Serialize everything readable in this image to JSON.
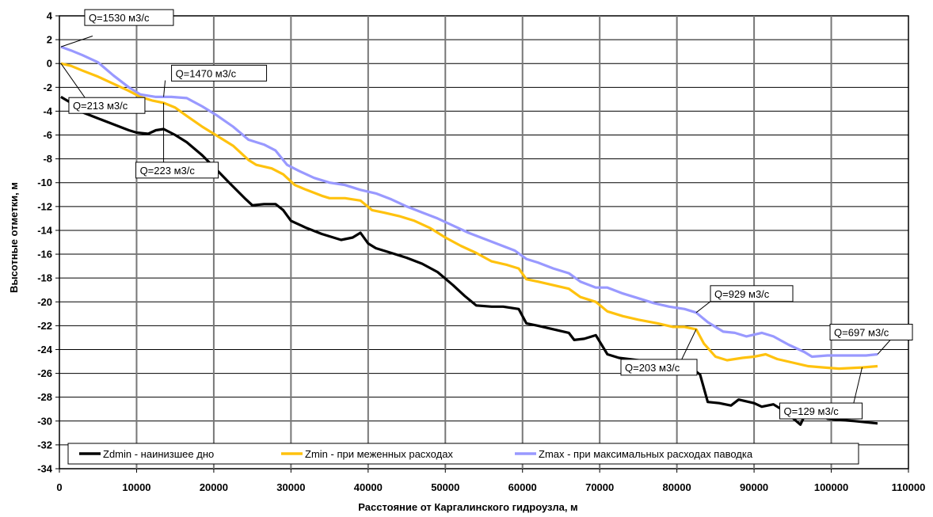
{
  "chart_data": {
    "type": "line",
    "xlabel": "Расстояние от Каргалинского гидроузла, м",
    "ylabel": "Высотные отметки, м",
    "xlim": [
      0,
      110000
    ],
    "ylim": [
      -34,
      4
    ],
    "x_ticks": [
      "0",
      "10000",
      "20000",
      "30000",
      "40000",
      "50000",
      "60000",
      "70000",
      "80000",
      "90000",
      "100000",
      "110000"
    ],
    "y_ticks": [
      "4",
      "2",
      "0",
      "-2",
      "-4",
      "-6",
      "-8",
      "-10",
      "-12",
      "-14",
      "-16",
      "-18",
      "-20",
      "-22",
      "-24",
      "-26",
      "-28",
      "-30",
      "-32",
      "-34"
    ],
    "grid": "vertical major gridlines and horizontal gridlines",
    "legend_position": "bottom-left inside",
    "series": [
      {
        "name": "Zdmin - наинизшее дно",
        "color": "#000000",
        "points": [
          [
            200,
            -2.8
          ],
          [
            1500,
            -3.3
          ],
          [
            3000,
            -4.1
          ],
          [
            5000,
            -4.6
          ],
          [
            7000,
            -5.1
          ],
          [
            9000,
            -5.6
          ],
          [
            10000,
            -5.8
          ],
          [
            11500,
            -5.9
          ],
          [
            12500,
            -5.6
          ],
          [
            13500,
            -5.5
          ],
          [
            15000,
            -6.0
          ],
          [
            16500,
            -6.6
          ],
          [
            18500,
            -7.7
          ],
          [
            20500,
            -9.0
          ],
          [
            22000,
            -10.0
          ],
          [
            24000,
            -11.3
          ],
          [
            25000,
            -11.9
          ],
          [
            26500,
            -11.8
          ],
          [
            28000,
            -11.8
          ],
          [
            29000,
            -12.3
          ],
          [
            30000,
            -13.2
          ],
          [
            32000,
            -13.8
          ],
          [
            34000,
            -14.3
          ],
          [
            36500,
            -14.8
          ],
          [
            38000,
            -14.6
          ],
          [
            39000,
            -14.2
          ],
          [
            40000,
            -15.1
          ],
          [
            41000,
            -15.5
          ],
          [
            43000,
            -15.9
          ],
          [
            45000,
            -16.3
          ],
          [
            47000,
            -16.8
          ],
          [
            49000,
            -17.5
          ],
          [
            51000,
            -18.6
          ],
          [
            52500,
            -19.5
          ],
          [
            54000,
            -20.3
          ],
          [
            56000,
            -20.4
          ],
          [
            57500,
            -20.4
          ],
          [
            59500,
            -20.6
          ],
          [
            60500,
            -21.8
          ],
          [
            62000,
            -22.0
          ],
          [
            64000,
            -22.3
          ],
          [
            66000,
            -22.6
          ],
          [
            66700,
            -23.2
          ],
          [
            68000,
            -23.1
          ],
          [
            69500,
            -22.8
          ],
          [
            71000,
            -24.4
          ],
          [
            72500,
            -24.7
          ],
          [
            75000,
            -24.9
          ],
          [
            78000,
            -25.2
          ],
          [
            80500,
            -25.4
          ],
          [
            82000,
            -25.6
          ],
          [
            83000,
            -26.1
          ],
          [
            84000,
            -28.4
          ],
          [
            85500,
            -28.5
          ],
          [
            87000,
            -28.7
          ],
          [
            88000,
            -28.2
          ],
          [
            90000,
            -28.5
          ],
          [
            91000,
            -28.8
          ],
          [
            92500,
            -28.6
          ],
          [
            94000,
            -29.2
          ],
          [
            96000,
            -30.3
          ],
          [
            96800,
            -29.2
          ],
          [
            97500,
            -28.8
          ],
          [
            98500,
            -29.2
          ],
          [
            99500,
            -29.8
          ],
          [
            101000,
            -29.9
          ],
          [
            103000,
            -30.0
          ],
          [
            104500,
            -30.1
          ],
          [
            106000,
            -30.2
          ]
        ]
      },
      {
        "name": "Zmin - при меженных расходах",
        "color": "#FFC20E",
        "points": [
          [
            200,
            0.0
          ],
          [
            1500,
            -0.2
          ],
          [
            3000,
            -0.6
          ],
          [
            5000,
            -1.1
          ],
          [
            7000,
            -1.7
          ],
          [
            9000,
            -2.3
          ],
          [
            10500,
            -2.8
          ],
          [
            12000,
            -3.1
          ],
          [
            13500,
            -3.3
          ],
          [
            15000,
            -3.7
          ],
          [
            16500,
            -4.4
          ],
          [
            18500,
            -5.3
          ],
          [
            20500,
            -6.1
          ],
          [
            22500,
            -6.9
          ],
          [
            24500,
            -8.1
          ],
          [
            25500,
            -8.5
          ],
          [
            27500,
            -8.8
          ],
          [
            29000,
            -9.3
          ],
          [
            30500,
            -10.2
          ],
          [
            32000,
            -10.6
          ],
          [
            34000,
            -11.1
          ],
          [
            35000,
            -11.3
          ],
          [
            37000,
            -11.3
          ],
          [
            39000,
            -11.5
          ],
          [
            40500,
            -12.3
          ],
          [
            42000,
            -12.5
          ],
          [
            44000,
            -12.8
          ],
          [
            46000,
            -13.2
          ],
          [
            48000,
            -13.8
          ],
          [
            50000,
            -14.6
          ],
          [
            52000,
            -15.3
          ],
          [
            54000,
            -15.9
          ],
          [
            56000,
            -16.6
          ],
          [
            58000,
            -16.9
          ],
          [
            59500,
            -17.2
          ],
          [
            60500,
            -18.1
          ],
          [
            62000,
            -18.3
          ],
          [
            64000,
            -18.6
          ],
          [
            66000,
            -18.9
          ],
          [
            67500,
            -19.6
          ],
          [
            69500,
            -20.0
          ],
          [
            71000,
            -20.8
          ],
          [
            73000,
            -21.2
          ],
          [
            75000,
            -21.5
          ],
          [
            77500,
            -21.8
          ],
          [
            79500,
            -22.1
          ],
          [
            81000,
            -22.1
          ],
          [
            82500,
            -22.3
          ],
          [
            83500,
            -23.5
          ],
          [
            85000,
            -24.6
          ],
          [
            86500,
            -24.9
          ],
          [
            88500,
            -24.7
          ],
          [
            90000,
            -24.6
          ],
          [
            91500,
            -24.4
          ],
          [
            93000,
            -24.8
          ],
          [
            95000,
            -25.1
          ],
          [
            97000,
            -25.4
          ],
          [
            99000,
            -25.5
          ],
          [
            101000,
            -25.6
          ],
          [
            104000,
            -25.5
          ],
          [
            106000,
            -25.4
          ]
        ]
      },
      {
        "name": "Zmax - при максимальных расходах паводка",
        "color": "#9999FF",
        "points": [
          [
            200,
            1.4
          ],
          [
            1500,
            1.1
          ],
          [
            3000,
            0.7
          ],
          [
            5000,
            0.1
          ],
          [
            7000,
            -1.0
          ],
          [
            9000,
            -2.0
          ],
          [
            10500,
            -2.6
          ],
          [
            12500,
            -2.8
          ],
          [
            14500,
            -2.8
          ],
          [
            16500,
            -2.9
          ],
          [
            18500,
            -3.6
          ],
          [
            20500,
            -4.4
          ],
          [
            22500,
            -5.3
          ],
          [
            24500,
            -6.4
          ],
          [
            26500,
            -6.8
          ],
          [
            28000,
            -7.3
          ],
          [
            29500,
            -8.5
          ],
          [
            31000,
            -9.0
          ],
          [
            33000,
            -9.6
          ],
          [
            35000,
            -10.0
          ],
          [
            37000,
            -10.2
          ],
          [
            39000,
            -10.6
          ],
          [
            41000,
            -10.9
          ],
          [
            43000,
            -11.4
          ],
          [
            45000,
            -12.0
          ],
          [
            47000,
            -12.5
          ],
          [
            49000,
            -13.0
          ],
          [
            51000,
            -13.6
          ],
          [
            53000,
            -14.2
          ],
          [
            55000,
            -14.7
          ],
          [
            57000,
            -15.2
          ],
          [
            59000,
            -15.7
          ],
          [
            60500,
            -16.4
          ],
          [
            62000,
            -16.7
          ],
          [
            64000,
            -17.2
          ],
          [
            66000,
            -17.6
          ],
          [
            67500,
            -18.3
          ],
          [
            69500,
            -18.8
          ],
          [
            71000,
            -18.8
          ],
          [
            73000,
            -19.3
          ],
          [
            75000,
            -19.7
          ],
          [
            77000,
            -20.1
          ],
          [
            79000,
            -20.4
          ],
          [
            81000,
            -20.6
          ],
          [
            82500,
            -20.9
          ],
          [
            84000,
            -21.7
          ],
          [
            86000,
            -22.5
          ],
          [
            87500,
            -22.6
          ],
          [
            89000,
            -22.9
          ],
          [
            91000,
            -22.6
          ],
          [
            92500,
            -22.9
          ],
          [
            94500,
            -23.6
          ],
          [
            96500,
            -24.2
          ],
          [
            97500,
            -24.6
          ],
          [
            99500,
            -24.5
          ],
          [
            102000,
            -24.5
          ],
          [
            104500,
            -24.5
          ],
          [
            106000,
            -24.4
          ]
        ]
      }
    ],
    "annotations": [
      {
        "text": "Q=1530 м3/с",
        "x": 200,
        "y": 1.4
      },
      {
        "text": "Q=1470 м3/с",
        "x": 13500,
        "y": -2.8
      },
      {
        "text": "Q=213 м3/с",
        "x": 200,
        "y": 0.0
      },
      {
        "text": "Q=223 м3/с",
        "x": 13500,
        "y": -3.3
      },
      {
        "text": "Q=929 м3/с",
        "x": 82500,
        "y": -20.9
      },
      {
        "text": "Q=203 м3/с",
        "x": 82500,
        "y": -22.3
      },
      {
        "text": "Q=697 м3/с",
        "x": 106000,
        "y": -24.4
      },
      {
        "text": "Q=129 м3/с",
        "x": 104000,
        "y": -25.5
      }
    ]
  }
}
